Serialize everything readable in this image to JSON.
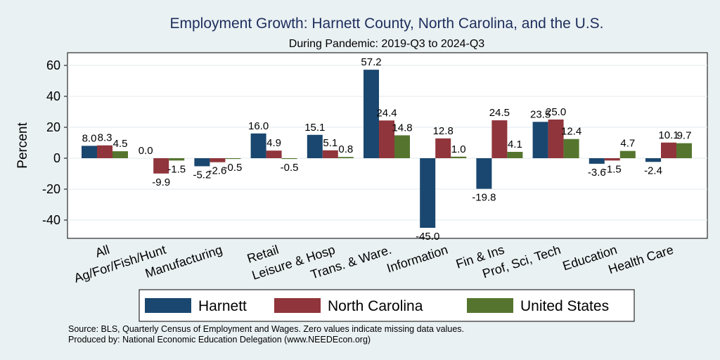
{
  "chart_data": {
    "type": "bar",
    "title": "Employment Growth: Harnett County, North Carolina, and the U.S.",
    "subtitle": "During Pandemic: 2019-Q3 to 2024-Q3",
    "ylabel": "Percent",
    "xlabel": "",
    "ylim": [
      -50,
      68
    ],
    "yticks": [
      -40,
      -20,
      0,
      20,
      40,
      60
    ],
    "ytick_labels": [
      "-40",
      "-20",
      "0",
      "20",
      "40",
      "60"
    ],
    "grid": true,
    "legend_position": "bottom",
    "categories": [
      "All",
      "Ag/For/Fish/Hunt",
      "Manufacturing",
      "Retail",
      "Leisure & Hosp",
      "Trans. & Ware.",
      "Information",
      "Fin & Ins",
      "Prof, Sci, Tech",
      "Education",
      "Health Care"
    ],
    "series": [
      {
        "name": "Harnett",
        "color": "#1a476f",
        "values": [
          8.0,
          0.0,
          -5.2,
          16.0,
          15.1,
          57.2,
          -45.0,
          -19.8,
          23.5,
          -3.6,
          -2.4
        ],
        "labels": [
          "8.0",
          "0.0",
          "-5.2",
          "16.0",
          "15.1",
          "57.2",
          "-45.0",
          "-19.8",
          "23.5",
          "-3.6",
          "-2.4"
        ]
      },
      {
        "name": "North Carolina",
        "color": "#90353b",
        "values": [
          8.3,
          -9.9,
          -2.6,
          4.9,
          5.1,
          24.4,
          12.8,
          24.5,
          25.0,
          -1.5,
          10.1
        ],
        "labels": [
          "8.3",
          "-9.9",
          "-2.6",
          "4.9",
          "5.1",
          "24.4",
          "12.8",
          "24.5",
          "25.0",
          "-1.5",
          "10.1"
        ]
      },
      {
        "name": "United States",
        "color": "#55752f",
        "values": [
          4.5,
          -1.5,
          -0.5,
          -0.5,
          0.8,
          14.8,
          1.0,
          4.1,
          12.4,
          4.7,
          9.7
        ],
        "labels": [
          "4.5",
          "-1.5",
          "-0.5",
          "-0.5",
          "0.8",
          "14.8",
          "1.0",
          "4.1",
          "12.4",
          "4.7",
          "9.7"
        ]
      }
    ]
  },
  "notes": {
    "source": "Source: BLS, Quarterly Census of Employment and Wages. Zero values indicate missing data values.",
    "produced": "Produced by: National Economic Education Delegation (www.NEEDEcon.org)"
  }
}
